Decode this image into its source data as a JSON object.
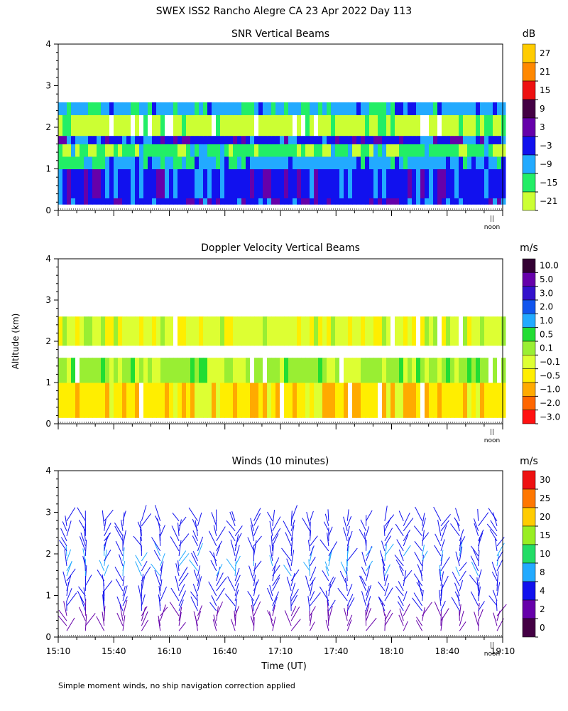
{
  "figure": {
    "suptitle": "SWEX ISS2 Rancho Alegre CA  23 Apr 2022 Day 113",
    "ylabel": "Altitude (km)",
    "xlabel": "Time (UT)",
    "footnote": "Simple moment winds, no ship navigation correction applied",
    "noon_label": "noon"
  },
  "chart_data": [
    {
      "type": "heatmap",
      "title": "SNR Vertical Beams",
      "ylim": [
        0,
        4
      ],
      "y_ticks": [
        "0",
        "1",
        "2",
        "3",
        "4"
      ],
      "x_range": [
        "15:10",
        "19:10"
      ],
      "colorbar": {
        "unit": "dB",
        "labels": [
          "27",
          "21",
          "15",
          "9",
          "3",
          "−3",
          "−9",
          "−15",
          "−21"
        ],
        "colors": [
          "#ffcc00",
          "#ff8800",
          "#ee1111",
          "#440044",
          "#6600aa",
          "#1111ee",
          "#22aaff",
          "#22ee66",
          "#ccff33"
        ]
      },
      "layers": [
        {
          "from_km": 0.15,
          "to_km": 0.3,
          "level": "-3"
        },
        {
          "from_km": 0.3,
          "to_km": 1.0,
          "level": "-3"
        },
        {
          "from_km": 1.0,
          "to_km": 1.3,
          "level": "-9"
        },
        {
          "from_km": 1.3,
          "to_km": 1.6,
          "level": "-15"
        },
        {
          "from_km": 1.6,
          "to_km": 1.8,
          "level": "-3"
        },
        {
          "from_km": 1.8,
          "to_km": 2.3,
          "level": "-21"
        },
        {
          "from_km": 2.3,
          "to_km": 2.6,
          "level": "-9"
        }
      ]
    },
    {
      "type": "heatmap",
      "title": "Doppler Velocity Vertical Beams",
      "ylim": [
        0,
        4
      ],
      "y_ticks": [
        "0",
        "1",
        "2",
        "3",
        "4"
      ],
      "x_range": [
        "15:10",
        "19:10"
      ],
      "colorbar": {
        "unit": "m/s",
        "labels": [
          "10.0",
          "5.0",
          "3.0",
          "2.0",
          "1.0",
          "0.5",
          "0.1",
          "−0.1",
          "−0.5",
          "−1.0",
          "−2.0",
          "−3.0"
        ],
        "colors": [
          "#330033",
          "#6600aa",
          "#3311cc",
          "#1155ee",
          "#22aaff",
          "#22dd33",
          "#99ee33",
          "#ddff33",
          "#ffee00",
          "#ffaa00",
          "#ff6600",
          "#ff1111"
        ]
      },
      "layers": [
        {
          "from_km": 0.15,
          "to_km": 1.0,
          "level": "-0.5"
        },
        {
          "from_km": 1.0,
          "to_km": 1.6,
          "level": "0.1"
        },
        {
          "from_km": 1.9,
          "to_km": 2.6,
          "level": "-0.1"
        }
      ]
    },
    {
      "type": "scatter",
      "title": "Winds (10 minutes)",
      "ylim": [
        0,
        4
      ],
      "y_ticks": [
        "0",
        "1",
        "2",
        "3",
        "4"
      ],
      "x_ticks": [
        "15:10",
        "15:40",
        "16:10",
        "16:40",
        "17:10",
        "17:40",
        "18:10",
        "18:40",
        "19:10"
      ],
      "colorbar": {
        "unit": "m/s",
        "labels": [
          "30",
          "25",
          "20",
          "15",
          "10",
          "8",
          "4",
          "2",
          "0"
        ],
        "colors": [
          "#ee1111",
          "#ff7700",
          "#ffcc00",
          "#99ee22",
          "#22dd66",
          "#22aaff",
          "#1111ee",
          "#6600aa",
          "#440044"
        ]
      },
      "profile_times": [
        "15:15",
        "15:25",
        "15:35",
        "15:45",
        "15:55",
        "16:05",
        "16:15",
        "16:25",
        "16:35",
        "16:45",
        "16:55",
        "17:05",
        "17:15",
        "17:25",
        "17:35",
        "17:45",
        "17:55",
        "18:05",
        "18:15",
        "18:25",
        "18:35",
        "18:45",
        "18:55",
        "19:05"
      ]
    }
  ]
}
